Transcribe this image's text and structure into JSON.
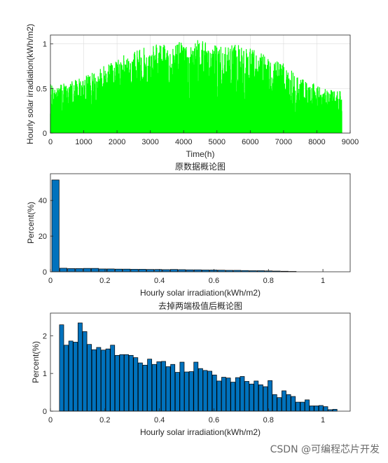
{
  "colors": {
    "line": "#00ff00",
    "bar": "#0072bd",
    "bar_edge": "#000000",
    "grid": "#dcdcdc",
    "axis": "#262626"
  },
  "watermark": "CSDN @可编程芯片开发",
  "chart_data": [
    {
      "type": "area",
      "title": "",
      "xlabel": "Time(h)",
      "ylabel": "Hourly solar irradiation(kWh/m2)",
      "xlim": [
        0,
        9000
      ],
      "ylim": [
        0,
        1.1
      ],
      "xticks": [
        0,
        1000,
        2000,
        3000,
        4000,
        5000,
        6000,
        7000,
        8000,
        9000
      ],
      "yticks": [
        0,
        0.5,
        1
      ],
      "grid": true,
      "series": [
        {
          "x": [
            0,
            250,
            500,
            750,
            1000,
            1250,
            1500,
            1750,
            2000,
            2250,
            2500,
            2750,
            3000,
            3250,
            3500,
            3750,
            4000,
            4250,
            4500,
            4750,
            5000,
            5250,
            5500,
            5750,
            6000,
            6250,
            6500,
            6750,
            7000,
            7250,
            7500,
            7750,
            8000,
            8250,
            8500,
            8750
          ],
          "y": [
            0.55,
            0.56,
            0.58,
            0.6,
            0.63,
            0.68,
            0.74,
            0.8,
            0.85,
            0.88,
            0.92,
            0.95,
            0.98,
            1.0,
            1.0,
            1.02,
            1.03,
            1.0,
            1.08,
            1.0,
            1.02,
            1.0,
            1.0,
            0.98,
            0.95,
            0.95,
            0.88,
            0.82,
            0.78,
            0.7,
            0.62,
            0.58,
            0.55,
            0.5,
            0.48,
            0.48
          ]
        }
      ]
    },
    {
      "type": "bar",
      "title": "原数据概论图",
      "xlabel": "Hourly solar irradiation(kWh/m2)",
      "ylabel": "Percent(%)",
      "xlim": [
        0,
        1.1
      ],
      "ylim": [
        0,
        55
      ],
      "xticks": [
        0,
        0.2,
        0.4,
        0.6,
        0.8,
        1
      ],
      "yticks": [
        0,
        20,
        40
      ],
      "grid": false,
      "x": [
        0.0185,
        0.0475,
        0.0765,
        0.1055,
        0.1345,
        0.1635,
        0.1925,
        0.2215,
        0.2505,
        0.2795,
        0.3085,
        0.3375,
        0.3665,
        0.3955,
        0.4245,
        0.4535,
        0.4825,
        0.5115,
        0.5405,
        0.5695,
        0.5985,
        0.6275,
        0.6565,
        0.6855,
        0.7145,
        0.7435,
        0.7725,
        0.8015,
        0.8305,
        0.8595,
        0.8885
      ],
      "values": [
        51.5,
        2.0,
        1.8,
        1.8,
        1.9,
        1.9,
        1.6,
        1.6,
        1.5,
        1.5,
        1.4,
        1.4,
        1.3,
        1.3,
        1.2,
        1.3,
        1.2,
        1.1,
        1.1,
        1.0,
        1.0,
        0.9,
        0.8,
        0.8,
        0.7,
        0.6,
        0.6,
        0.5,
        0.4,
        0.3,
        0.2
      ]
    },
    {
      "type": "bar",
      "title": "去掉两端极值后概论图",
      "xlabel": "Hourly solar irradiation(kWh/m2)",
      "ylabel": "Percent(%)",
      "xlim": [
        0,
        1.1
      ],
      "ylim": [
        0,
        2.6
      ],
      "xticks": [
        0,
        0.2,
        0.4,
        0.6,
        0.8,
        1
      ],
      "yticks": [
        0,
        1,
        2
      ],
      "grid": false,
      "x": [
        0.041,
        0.058,
        0.075,
        0.092,
        0.109,
        0.126,
        0.143,
        0.16,
        0.177,
        0.194,
        0.211,
        0.228,
        0.245,
        0.262,
        0.279,
        0.296,
        0.313,
        0.33,
        0.347,
        0.364,
        0.381,
        0.398,
        0.415,
        0.432,
        0.449,
        0.466,
        0.483,
        0.5,
        0.517,
        0.534,
        0.551,
        0.568,
        0.585,
        0.602,
        0.619,
        0.636,
        0.653,
        0.67,
        0.687,
        0.704,
        0.721,
        0.738,
        0.755,
        0.772,
        0.789,
        0.806,
        0.823,
        0.84,
        0.857,
        0.874,
        0.891,
        0.908,
        0.925,
        0.942,
        0.959,
        0.976,
        0.993,
        1.01,
        1.027,
        1.044
      ],
      "values": [
        2.29,
        1.75,
        1.86,
        1.83,
        2.34,
        2.11,
        1.77,
        1.63,
        1.69,
        1.62,
        1.65,
        1.75,
        1.48,
        1.5,
        1.5,
        1.48,
        1.42,
        1.28,
        1.22,
        1.38,
        1.24,
        1.31,
        1.32,
        1.18,
        1.24,
        1.03,
        1.3,
        1.04,
        1.05,
        1.3,
        1.13,
        1.08,
        1.06,
        0.96,
        0.8,
        0.9,
        0.88,
        0.77,
        0.89,
        0.92,
        0.79,
        0.72,
        0.8,
        0.7,
        0.65,
        0.81,
        0.44,
        0.36,
        0.54,
        0.44,
        0.39,
        0.24,
        0.24,
        0.3,
        0.14,
        0.14,
        0.15,
        0.12,
        0.04,
        0.05
      ]
    }
  ]
}
